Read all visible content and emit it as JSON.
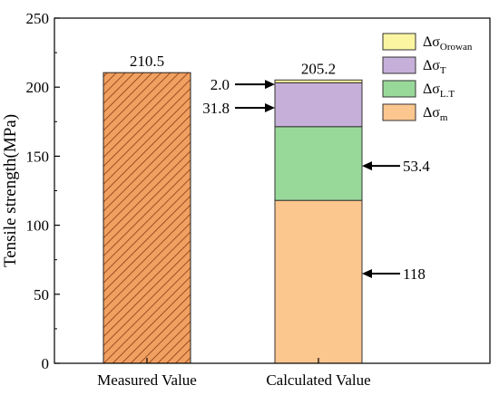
{
  "chart_data": {
    "type": "bar",
    "ylabel": "Tensile strength(MPa)",
    "ylim": [
      0,
      250
    ],
    "yticks": [
      0,
      50,
      100,
      150,
      200,
      250
    ],
    "categories": [
      "Measured Value",
      "Calculated Value"
    ],
    "measured": {
      "value": 210.5,
      "label": "210.5",
      "color": "#f0a060",
      "hatch": "diagonal"
    },
    "calculated": {
      "total_label": "205.2",
      "components": [
        {
          "key": "m",
          "base": "Δσ",
          "sub": "m",
          "value": 118,
          "label": "118",
          "color": "#fcc68f"
        },
        {
          "key": "LT",
          "base": "Δσ",
          "sub": "L.T",
          "value": 53.4,
          "label": "53.4",
          "color": "#98d99a"
        },
        {
          "key": "T",
          "base": "Δσ",
          "sub": "T",
          "value": 31.8,
          "label": "31.8",
          "color": "#c6afd9"
        },
        {
          "key": "Orowan",
          "base": "Δσ",
          "sub": "Orowan",
          "value": 2.0,
          "label": "2.0",
          "color": "#fbf5a2"
        }
      ]
    },
    "legend_position": "top-right",
    "grid": false
  }
}
